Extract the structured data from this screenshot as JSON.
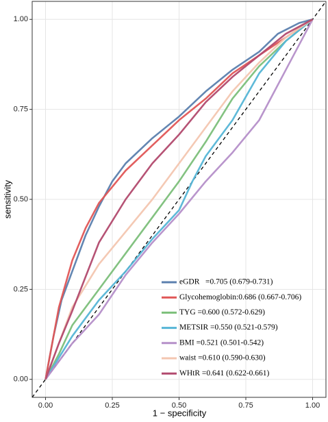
{
  "chart_data": {
    "type": "line",
    "xlabel": "1 − specificity",
    "ylabel": "sensitivity",
    "xlim": [
      -0.05,
      1.05
    ],
    "ylim": [
      -0.05,
      1.05
    ],
    "xticks": [
      {
        "value": 0,
        "label": "0.00"
      },
      {
        "value": 0.25,
        "label": "0.25"
      },
      {
        "value": 0.5,
        "label": "0.50"
      },
      {
        "value": 0.75,
        "label": "0.75"
      },
      {
        "value": 1,
        "label": "1.00"
      }
    ],
    "yticks": [
      {
        "value": 0,
        "label": "0.00"
      },
      {
        "value": 0.25,
        "label": "0.25"
      },
      {
        "value": 0.5,
        "label": "0.50"
      },
      {
        "value": 0.75,
        "label": "0.75"
      },
      {
        "value": 1,
        "label": "1.00"
      }
    ],
    "grid": true,
    "legend": "bottom-right",
    "series": [
      {
        "name": "eGDR   =0.705 (0.679-0.731)",
        "color": "#5b7fae",
        "x": [
          0,
          0.03,
          0.06,
          0.1,
          0.15,
          0.2,
          0.25,
          0.3,
          0.4,
          0.5,
          0.6,
          0.7,
          0.8,
          0.87,
          0.95,
          1
        ],
        "values": [
          0,
          0.12,
          0.22,
          0.3,
          0.4,
          0.48,
          0.55,
          0.6,
          0.67,
          0.73,
          0.8,
          0.86,
          0.91,
          0.96,
          0.99,
          1
        ]
      },
      {
        "name": "Glycohemoglobin:0.686 (0.667-0.706)",
        "color": "#e05656",
        "x": [
          0,
          0.05,
          0.1,
          0.15,
          0.2,
          0.3,
          0.4,
          0.5,
          0.6,
          0.7,
          0.8,
          0.9,
          1
        ],
        "values": [
          0,
          0.2,
          0.33,
          0.42,
          0.49,
          0.58,
          0.65,
          0.72,
          0.78,
          0.85,
          0.9,
          0.95,
          1
        ]
      },
      {
        "name": "TYG =0.600 (0.572-0.629)",
        "color": "#7cbf7a",
        "x": [
          0,
          0.05,
          0.1,
          0.2,
          0.3,
          0.4,
          0.5,
          0.6,
          0.7,
          0.8,
          0.9,
          1
        ],
        "values": [
          0,
          0.07,
          0.15,
          0.25,
          0.35,
          0.45,
          0.55,
          0.66,
          0.78,
          0.87,
          0.94,
          1
        ]
      },
      {
        "name": "METSIR =0.550 (0.521-0.579)",
        "color": "#55b5d6",
        "x": [
          0,
          0.1,
          0.2,
          0.3,
          0.4,
          0.5,
          0.55,
          0.6,
          0.7,
          0.8,
          0.9,
          1
        ],
        "values": [
          0,
          0.12,
          0.22,
          0.3,
          0.39,
          0.47,
          0.55,
          0.62,
          0.72,
          0.85,
          0.94,
          1
        ]
      },
      {
        "name": "BMI =0.521 (0.501-0.542)",
        "color": "#b58fc9",
        "x": [
          0,
          0.1,
          0.2,
          0.3,
          0.4,
          0.5,
          0.6,
          0.7,
          0.8,
          0.9,
          1
        ],
        "values": [
          0,
          0.1,
          0.18,
          0.29,
          0.38,
          0.46,
          0.55,
          0.63,
          0.72,
          0.86,
          1
        ]
      },
      {
        "name": "waist =0.610 (0.590-0.630)",
        "color": "#f3c6b0",
        "x": [
          0,
          0.05,
          0.1,
          0.2,
          0.3,
          0.4,
          0.5,
          0.6,
          0.7,
          0.8,
          0.9,
          1
        ],
        "values": [
          0,
          0.1,
          0.2,
          0.32,
          0.41,
          0.5,
          0.6,
          0.7,
          0.8,
          0.88,
          0.95,
          1
        ]
      },
      {
        "name": "WHtR =0.641 (0.622-0.661)",
        "color": "#b24a6e",
        "x": [
          0,
          0.05,
          0.1,
          0.2,
          0.3,
          0.4,
          0.5,
          0.6,
          0.7,
          0.8,
          0.9,
          1
        ],
        "values": [
          0,
          0.1,
          0.19,
          0.38,
          0.5,
          0.6,
          0.68,
          0.77,
          0.84,
          0.9,
          0.96,
          1
        ]
      }
    ]
  }
}
